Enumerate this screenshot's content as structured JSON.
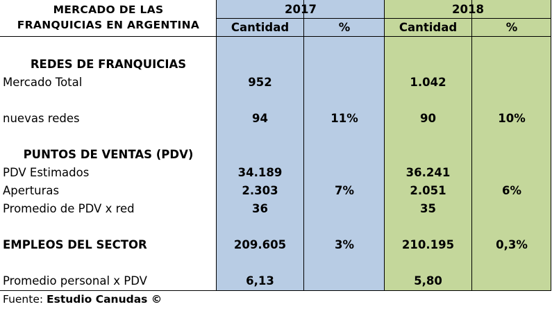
{
  "title": {
    "line1": "MERCADO DE LAS",
    "line2": "FRANQUICIAS EN ARGENTINA"
  },
  "years": {
    "y2017": "2017",
    "y2018": "2018"
  },
  "subheaders": {
    "cantidad": "Cantidad",
    "percent": "%"
  },
  "rows": {
    "redes_header": "REDES DE FRANQUICIAS",
    "mercado_total": {
      "label": "Mercado Total",
      "c2017": "952",
      "p2017": "",
      "c2018": "1.042",
      "p2018": ""
    },
    "nuevas_redes": {
      "label": "nuevas redes",
      "c2017": "94",
      "p2017": "11%",
      "c2018": "90",
      "p2018": "10%"
    },
    "pdv_header": "PUNTOS DE VENTAS (PDV)",
    "pdv_estimados": {
      "label": "PDV Estimados",
      "c2017": "34.189",
      "p2017": "",
      "c2018": "36.241",
      "p2018": ""
    },
    "aperturas": {
      "label": "Aperturas",
      "c2017": "2.303",
      "p2017": "7%",
      "c2018": "2.051",
      "p2018": "6%"
    },
    "promedio_pdv_red": {
      "label": "Promedio de PDV x red",
      "c2017": "36",
      "p2017": "",
      "c2018": "35",
      "p2018": ""
    },
    "empleos": {
      "label": "EMPLEOS DEL SECTOR",
      "c2017": "209.605",
      "p2017": "3%",
      "c2018": "210.195",
      "p2018": "0,3%"
    },
    "promedio_personal": {
      "label": "Promedio personal x PDV",
      "c2017": "6,13",
      "p2017": "",
      "c2018": "5,80",
      "p2018": ""
    }
  },
  "footer": {
    "prefix": "Fuente: ",
    "source": "Estudio Canudas ©"
  },
  "colors": {
    "col2017_bg": "#b8cce4",
    "col2018_bg": "#c4d79b"
  }
}
